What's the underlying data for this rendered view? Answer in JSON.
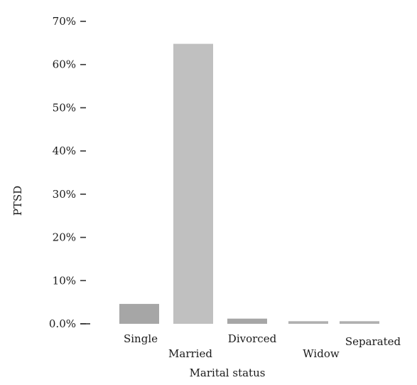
{
  "chart_data": {
    "type": "bar",
    "categories": [
      "Single",
      "Married",
      "Divorced",
      "Widow",
      "Separated"
    ],
    "values": [
      4.6,
      64.8,
      1.2,
      0.6,
      0.6
    ],
    "xlabel": "Marital status",
    "ylabel": "PTSD",
    "ylim": [
      0,
      70
    ],
    "yticks": [
      0,
      10,
      20,
      30,
      40,
      50,
      60,
      70
    ],
    "ytick_labels": [
      "0.0%",
      "10%",
      "20%",
      "30%",
      "40%",
      "50%",
      "60%",
      "70%"
    ],
    "bar_colors": [
      "#a6a6a6",
      "#c0c0c0",
      "#a6a6a6",
      "#b0b0b0",
      "#b0b0b0"
    ],
    "grid": false,
    "legend": "none"
  }
}
